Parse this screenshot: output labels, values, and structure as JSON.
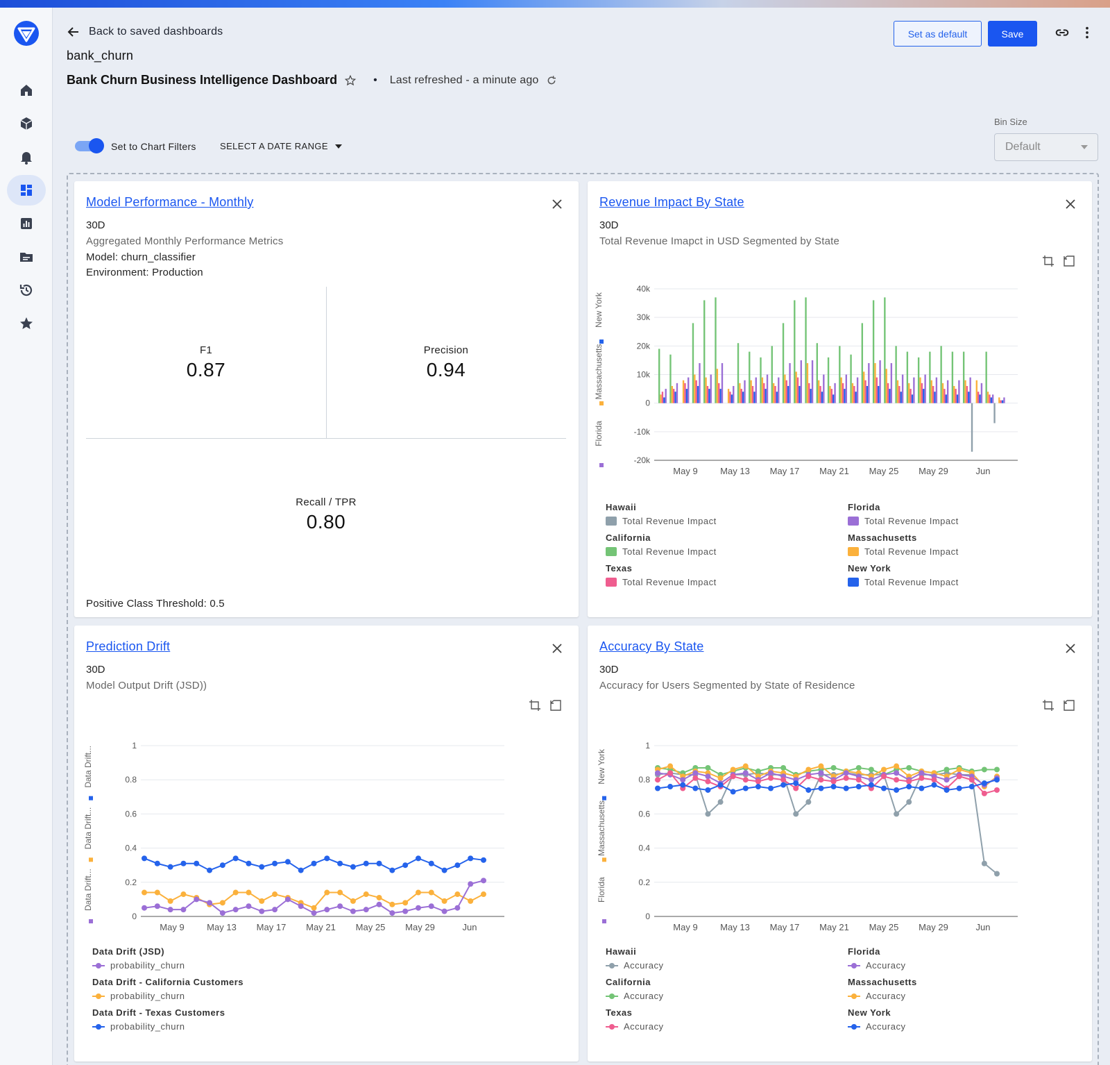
{
  "header": {
    "back_label": "Back to saved dashboards",
    "project": "bank_churn",
    "dashboard_title": "Bank Churn Business Intelligence Dashboard",
    "separator": "•",
    "last_refreshed": "Last refreshed - a minute ago",
    "set_default_label": "Set as default",
    "save_label": "Save"
  },
  "filters": {
    "toggle_label": "Set to Chart Filters",
    "toggle_on": true,
    "date_range_label": "SELECT A DATE RANGE",
    "bin_size_label": "Bin Size",
    "bin_size_value": "Default"
  },
  "sidebar": {
    "items": [
      "home-icon",
      "cube-icon",
      "bell-icon",
      "dashboard-icon",
      "bar-chart-icon",
      "folder-icon",
      "history-icon",
      "star-icon"
    ],
    "active": "dashboard-icon"
  },
  "cards": {
    "performance": {
      "title": "Model Performance - Monthly",
      "period": "30D",
      "subtitle": "Aggregated Monthly Performance Metrics",
      "model": "Model: churn_classifier",
      "environment": "Environment: Production",
      "metrics": [
        {
          "name": "F1",
          "value": "0.87"
        },
        {
          "name": "Precision",
          "value": "0.94"
        },
        {
          "name": "Recall / TPR",
          "value": "0.80"
        }
      ],
      "threshold": "Positive Class Threshold: 0.5"
    },
    "revenue": {
      "title": "Revenue Impact By State",
      "period": "30D",
      "subtitle": "Total Revenue Imapct in USD Segmented by State",
      "legend": [
        {
          "group": "Hawaii",
          "label": "Total Revenue Impact",
          "color": "#8fa0ab"
        },
        {
          "group": "Florida",
          "label": "Total Revenue Impact",
          "color": "#9b6fd6"
        },
        {
          "group": "California",
          "label": "Total Revenue Impact",
          "color": "#74c476"
        },
        {
          "group": "Massachusetts",
          "label": "Total Revenue Impact",
          "color": "#fbb13c"
        },
        {
          "group": "Texas",
          "label": "Total Revenue Impact",
          "color": "#ef5d8f"
        },
        {
          "group": "New York",
          "label": "Total Revenue Impact",
          "color": "#2563eb"
        }
      ]
    },
    "drift": {
      "title": "Prediction Drift",
      "period": "30D",
      "subtitle": "Model Output Drift (JSD))",
      "legend": [
        {
          "group": "Data Drift (JSD)",
          "label": "probability_churn",
          "color": "#9b6fd6"
        },
        {
          "group": "Data Drift - California Customers",
          "label": "probability_churn",
          "color": "#fbb13c"
        },
        {
          "group": "Data Drift - Texas Customers",
          "label": "probability_churn",
          "color": "#2563eb"
        }
      ]
    },
    "accuracy": {
      "title": "Accuracy By State",
      "period": "30D",
      "subtitle": "Accuracy for Users Segmented by State of Residence",
      "legend": [
        {
          "group": "Hawaii",
          "label": "Accuracy",
          "color": "#8fa0ab"
        },
        {
          "group": "Florida",
          "label": "Accuracy",
          "color": "#9b6fd6"
        },
        {
          "group": "California",
          "label": "Accuracy",
          "color": "#74c476"
        },
        {
          "group": "Massachusetts",
          "label": "Accuracy",
          "color": "#fbb13c"
        },
        {
          "group": "Texas",
          "label": "Accuracy",
          "color": "#ef5d8f"
        },
        {
          "group": "New York",
          "label": "Accuracy",
          "color": "#2563eb"
        }
      ]
    }
  },
  "chart_data": [
    {
      "type": "bar",
      "x_labels": [
        "May 9",
        "May 13",
        "May 17",
        "May 21",
        "May 25",
        "May 29",
        "Jun"
      ],
      "y_ticks": [
        "40k",
        "30k",
        "20k",
        "10k",
        "0",
        "-10k",
        "-20k"
      ],
      "ylim": [
        -20000,
        40000
      ],
      "y_side_legend": [
        "Florida",
        "Massachusetts",
        "New York"
      ],
      "series": [
        {
          "name": "California",
          "color": "#74c476",
          "values": [
            19000,
            17000,
            0,
            28000,
            36000,
            37000,
            0,
            21000,
            18000,
            16000,
            20000,
            28000,
            36000,
            37000,
            21000,
            16000,
            20000,
            17000,
            28000,
            36000,
            37000,
            20000,
            18000,
            16000,
            18000,
            20000,
            18000,
            18000,
            0,
            18000,
            0
          ]
        },
        {
          "name": "Massachusetts",
          "color": "#fbb13c",
          "values": [
            3000,
            6000,
            8000,
            10000,
            9000,
            12000,
            5000,
            7000,
            8000,
            9000,
            7000,
            10000,
            11000,
            14000,
            8000,
            6000,
            9000,
            7000,
            11000,
            14000,
            12000,
            8000,
            7000,
            9000,
            8000,
            7000,
            6000,
            8000,
            8000,
            4000,
            2000
          ]
        },
        {
          "name": "Texas",
          "color": "#ef5d8f",
          "values": [
            4000,
            5000,
            7000,
            8000,
            6000,
            7000,
            4000,
            5000,
            6000,
            7000,
            6000,
            8000,
            9000,
            7000,
            6000,
            5000,
            7000,
            6000,
            8000,
            9000,
            7000,
            6000,
            5000,
            7000,
            6000,
            5000,
            5000,
            6000,
            4000,
            3000,
            1000
          ]
        },
        {
          "name": "New York",
          "color": "#2563eb",
          "values": [
            2000,
            4000,
            5000,
            6000,
            5000,
            5000,
            3000,
            4000,
            4000,
            5000,
            4000,
            6000,
            6000,
            5000,
            4000,
            3000,
            5000,
            4000,
            6000,
            6000,
            5000,
            4000,
            3000,
            5000,
            4000,
            3000,
            3000,
            4000,
            3000,
            2000,
            1000
          ]
        },
        {
          "name": "Florida",
          "color": "#9b6fd6",
          "values": [
            5000,
            7000,
            9000,
            14000,
            10000,
            14000,
            6000,
            8000,
            9000,
            10000,
            9000,
            14000,
            15000,
            15000,
            10000,
            7000,
            10000,
            9000,
            14000,
            15000,
            14000,
            10000,
            9000,
            10000,
            9000,
            8000,
            8000,
            9000,
            7000,
            3000,
            2000
          ]
        },
        {
          "name": "Hawaii",
          "color": "#8fa0ab",
          "values": [
            0,
            0,
            0,
            0,
            0,
            0,
            0,
            0,
            0,
            0,
            0,
            0,
            0,
            0,
            0,
            0,
            0,
            0,
            0,
            0,
            0,
            0,
            0,
            0,
            0,
            0,
            0,
            -17000,
            0,
            -7000,
            0
          ]
        }
      ]
    },
    {
      "type": "line",
      "x_labels": [
        "May 9",
        "May 13",
        "May 17",
        "May 21",
        "May 25",
        "May 29",
        "Jun"
      ],
      "y_ticks": [
        "1",
        "0.8",
        "0.6",
        "0.4",
        "0.2",
        "0"
      ],
      "ylim": [
        0,
        1
      ],
      "y_side_legend": [
        "Data Drift...",
        "Data Drift...",
        "Data Drift..."
      ],
      "series": [
        {
          "name": "Data Drift - Texas Customers",
          "color": "#2563eb",
          "values": [
            0.34,
            0.31,
            0.29,
            0.31,
            0.31,
            0.27,
            0.3,
            0.34,
            0.31,
            0.29,
            0.31,
            0.32,
            0.27,
            0.31,
            0.34,
            0.31,
            0.29,
            0.31,
            0.31,
            0.27,
            0.3,
            0.34,
            0.31,
            0.27,
            0.3,
            0.34,
            0.33
          ]
        },
        {
          "name": "Data Drift - California Customers",
          "color": "#fbb13c",
          "values": [
            0.14,
            0.14,
            0.09,
            0.13,
            0.11,
            0.07,
            0.08,
            0.14,
            0.14,
            0.09,
            0.13,
            0.11,
            0.08,
            0.05,
            0.14,
            0.14,
            0.09,
            0.13,
            0.11,
            0.07,
            0.08,
            0.14,
            0.14,
            0.09,
            0.13,
            0.09,
            0.13
          ]
        },
        {
          "name": "Data Drift (JSD)",
          "color": "#9b6fd6",
          "values": [
            0.05,
            0.06,
            0.04,
            0.04,
            0.1,
            0.08,
            0.02,
            0.04,
            0.06,
            0.03,
            0.04,
            0.1,
            0.06,
            0.02,
            0.04,
            0.06,
            0.03,
            0.04,
            0.07,
            0.02,
            0.03,
            0.05,
            0.06,
            0.03,
            0.05,
            0.19,
            0.21
          ]
        }
      ]
    },
    {
      "type": "line",
      "x_labels": [
        "May 9",
        "May 13",
        "May 17",
        "May 21",
        "May 25",
        "May 29",
        "Jun"
      ],
      "y_ticks": [
        "1",
        "0.8",
        "0.6",
        "0.4",
        "0.2",
        "0"
      ],
      "ylim": [
        0,
        1
      ],
      "y_side_legend": [
        "Florida",
        "Massachusetts",
        "New York"
      ],
      "series": [
        {
          "name": "Hawaii",
          "color": "#8fa0ab",
          "values": [
            0.83,
            0.84,
            0.83,
            0.83,
            0.6,
            0.67,
            0.83,
            0.83,
            0.84,
            0.83,
            0.83,
            0.6,
            0.67,
            0.83,
            0.83,
            0.84,
            0.83,
            0.83,
            0.83,
            0.6,
            0.67,
            0.83,
            0.83,
            0.84,
            0.83,
            0.83,
            0.31,
            0.25
          ]
        },
        {
          "name": "California",
          "color": "#74c476",
          "values": [
            0.87,
            0.86,
            0.84,
            0.87,
            0.87,
            0.83,
            0.85,
            0.87,
            0.85,
            0.87,
            0.87,
            0.83,
            0.85,
            0.86,
            0.87,
            0.85,
            0.87,
            0.86,
            0.83,
            0.86,
            0.87,
            0.85,
            0.84,
            0.86,
            0.87,
            0.85,
            0.86,
            0.86
          ]
        },
        {
          "name": "Massachusetts",
          "color": "#fbb13c",
          "values": [
            0.86,
            0.88,
            0.82,
            0.85,
            0.84,
            0.81,
            0.86,
            0.88,
            0.82,
            0.85,
            0.84,
            0.82,
            0.86,
            0.88,
            0.82,
            0.85,
            0.84,
            0.82,
            0.86,
            0.88,
            0.82,
            0.85,
            0.84,
            0.82,
            0.86,
            0.84,
            0.76,
            0.82
          ]
        },
        {
          "name": "Florida",
          "color": "#9b6fd6",
          "values": [
            0.84,
            0.83,
            0.8,
            0.84,
            0.82,
            0.78,
            0.83,
            0.84,
            0.8,
            0.84,
            0.82,
            0.8,
            0.83,
            0.84,
            0.8,
            0.84,
            0.82,
            0.8,
            0.83,
            0.84,
            0.8,
            0.84,
            0.82,
            0.8,
            0.83,
            0.82,
            0.77,
            0.81
          ]
        },
        {
          "name": "Texas",
          "color": "#ef5d8f",
          "values": [
            0.8,
            0.84,
            0.75,
            0.81,
            0.79,
            0.76,
            0.82,
            0.8,
            0.79,
            0.81,
            0.8,
            0.75,
            0.82,
            0.8,
            0.79,
            0.81,
            0.8,
            0.75,
            0.82,
            0.8,
            0.79,
            0.81,
            0.8,
            0.75,
            0.82,
            0.8,
            0.72,
            0.74
          ]
        },
        {
          "name": "New York",
          "color": "#2563eb",
          "values": [
            0.75,
            0.76,
            0.77,
            0.75,
            0.74,
            0.77,
            0.73,
            0.75,
            0.76,
            0.75,
            0.77,
            0.78,
            0.74,
            0.75,
            0.76,
            0.75,
            0.76,
            0.77,
            0.75,
            0.74,
            0.76,
            0.75,
            0.77,
            0.74,
            0.75,
            0.76,
            0.78,
            0.8
          ]
        }
      ]
    }
  ]
}
